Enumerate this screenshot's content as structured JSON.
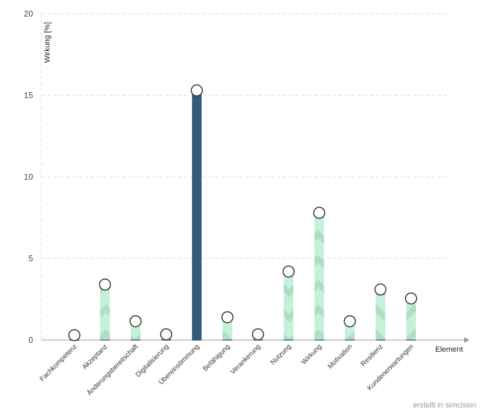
{
  "chart_data": {
    "type": "bar",
    "ylabel": "Wirkung [%]",
    "xlabel": "Element",
    "ylim": [
      0,
      20
    ],
    "yticks": [
      0,
      5,
      10,
      15,
      20
    ],
    "grid": true,
    "categories": [
      "Fachkompetenz",
      "Akzeptanz",
      "Änderungsbereitschaft",
      "Digitalisierung",
      "Übereinstimmung",
      "Befähigung",
      "Verankerung",
      "Nutzung",
      "Wirkung",
      "Motivation",
      "Resilienz",
      "Kundenerwartungen"
    ],
    "values": [
      0.3,
      3.4,
      1.15,
      0.35,
      15.3,
      1.4,
      0.35,
      4.2,
      7.8,
      1.15,
      3.1,
      2.55
    ],
    "highlight_index": 4,
    "colors": {
      "bar": "#c5f0da",
      "bar_pattern": "#b2dcc4",
      "highlight": "#355b79",
      "grid": "#dddddd",
      "marker_fill": "#ffffff",
      "marker_stroke": "#333333",
      "axis": "#999999"
    }
  },
  "credit": "erstellt in simcision"
}
